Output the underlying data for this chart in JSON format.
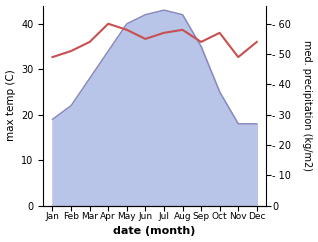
{
  "months": [
    "Jan",
    "Feb",
    "Mar",
    "Apr",
    "May",
    "Jun",
    "Jul",
    "Aug",
    "Sep",
    "Oct",
    "Nov",
    "Dec"
  ],
  "x": [
    0,
    1,
    2,
    3,
    4,
    5,
    6,
    7,
    8,
    9,
    10,
    11
  ],
  "max_temp": [
    19,
    22,
    28,
    34,
    40,
    42,
    43,
    42,
    35,
    25,
    18,
    18
  ],
  "precipitation": [
    49,
    51,
    54,
    60,
    58,
    55,
    57,
    58,
    54,
    57,
    49,
    54
  ],
  "temp_fill_color": "#b8c4e8",
  "temp_line_color": "#8888bb",
  "precip_color": "#c85050",
  "ylabel_left": "max temp (C)",
  "ylabel_right": "med. precipitation (kg/m2)",
  "xlabel": "date (month)",
  "ylim_left": [
    0,
    44
  ],
  "ylim_right": [
    0,
    66
  ],
  "yticks_left": [
    0,
    10,
    20,
    30,
    40
  ],
  "yticks_right": [
    0,
    10,
    20,
    30,
    40,
    50,
    60
  ],
  "fig_width": 3.18,
  "fig_height": 2.42,
  "dpi": 100
}
